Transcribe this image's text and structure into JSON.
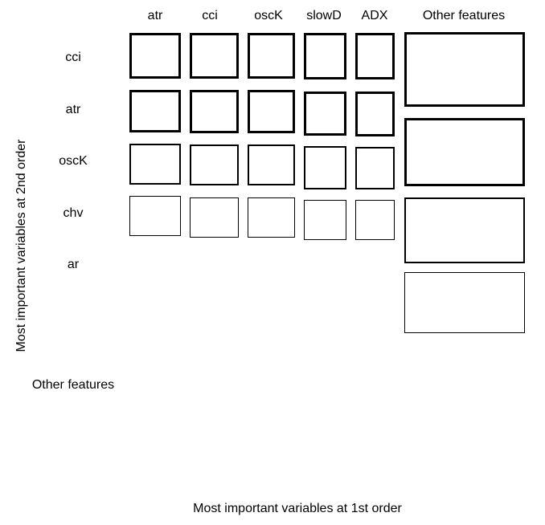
{
  "diagram": {
    "column_labels": [
      "atr",
      "cci",
      "oscK",
      "slowD",
      "ADX",
      "Other features"
    ],
    "row_labels": [
      "cci",
      "atr",
      "oscK",
      "chv",
      "ar",
      "Other features"
    ],
    "x_axis_label": "Most important variables at 1st order",
    "y_axis_label": "Most important variables at 2nd order"
  }
}
